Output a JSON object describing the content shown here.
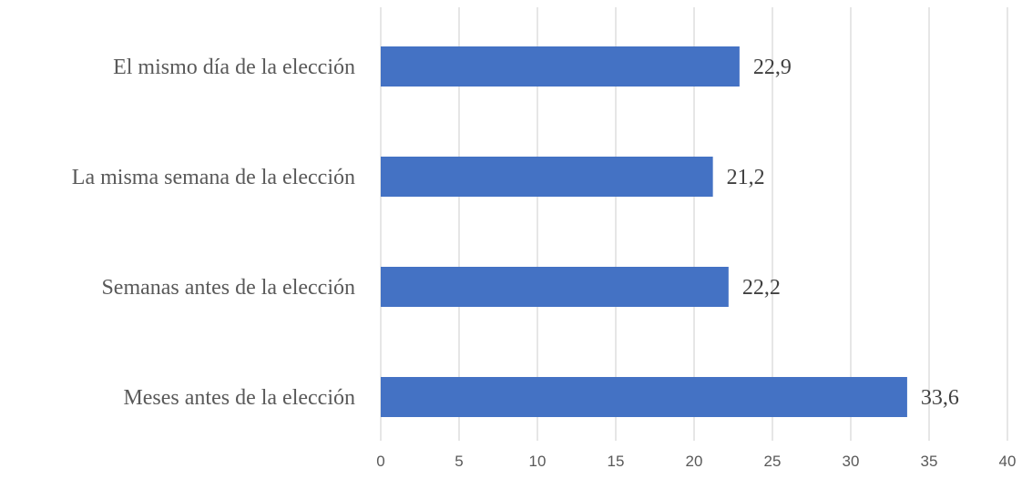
{
  "chart_data": {
    "type": "bar",
    "orientation": "horizontal",
    "title": "",
    "xlabel": "",
    "ylabel": "",
    "categories": [
      "El mismo día de la elección",
      "La misma semana de la elección",
      "Semanas antes de la elección",
      "Meses antes de la elección"
    ],
    "values": [
      22.9,
      21.2,
      22.2,
      33.6
    ],
    "value_labels": [
      "22,9",
      "21,2",
      "22,2",
      "33,6"
    ],
    "xlim": [
      0,
      40
    ],
    "xticks": [
      0,
      5,
      10,
      15,
      20,
      25,
      30,
      35,
      40
    ],
    "grid": "vertical",
    "legend": "none",
    "bar_color": "#4472c4"
  }
}
